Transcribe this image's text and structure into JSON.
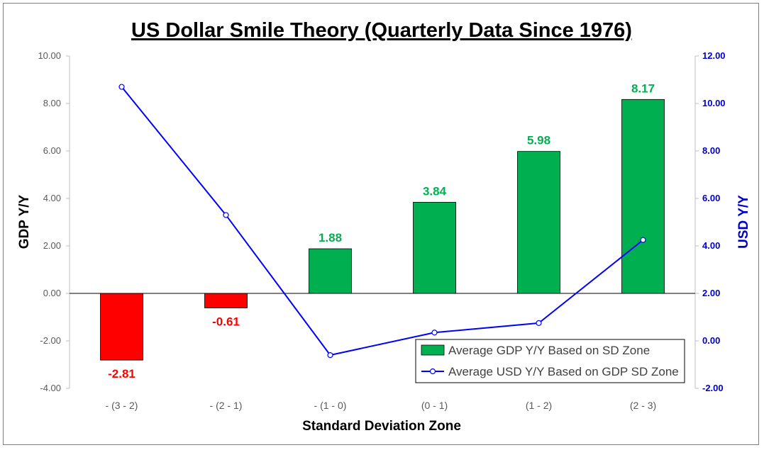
{
  "chart_data": {
    "type": "bar",
    "title": "US Dollar Smile Theory (Quarterly Data Since 1976)",
    "xlabel": "Standard Deviation Zone",
    "ylabel": "GDP Y/Y",
    "y2label": "USD Y/Y",
    "categories": [
      "- (3 - 2)",
      "- (2 - 1)",
      "- (1 - 0)",
      "(0 - 1)",
      "(1 - 2)",
      "(2 - 3)"
    ],
    "ylim": [
      -4,
      10
    ],
    "y2lim": [
      -2,
      12
    ],
    "yticks": [
      "-4.00",
      "-2.00",
      "0.00",
      "2.00",
      "4.00",
      "6.00",
      "8.00",
      "10.00"
    ],
    "y2ticks": [
      "-2.00",
      "0.00",
      "2.00",
      "4.00",
      "6.00",
      "8.00",
      "10.00",
      "12.00"
    ],
    "series": [
      {
        "name": "Average GDP Y/Y Based on SD Zone",
        "kind": "bar",
        "axis": "left",
        "values": [
          -2.81,
          -0.61,
          1.88,
          3.84,
          5.98,
          8.17
        ],
        "labels": [
          "-2.81",
          "-0.61",
          "1.88",
          "3.84",
          "5.98",
          "8.17"
        ]
      },
      {
        "name": "Average USD Y/Y Based on GDP SD Zone",
        "kind": "line",
        "axis": "right",
        "values": [
          10.7,
          5.3,
          -0.6,
          0.35,
          0.75,
          4.25
        ]
      }
    ],
    "colors": {
      "positive_bar": "#00b050",
      "negative_bar": "#ff0000",
      "line": "#0000ff",
      "right_axis": "#0000cc",
      "marker_fill": "#ffffff"
    },
    "legend_position": "bottom-right"
  }
}
